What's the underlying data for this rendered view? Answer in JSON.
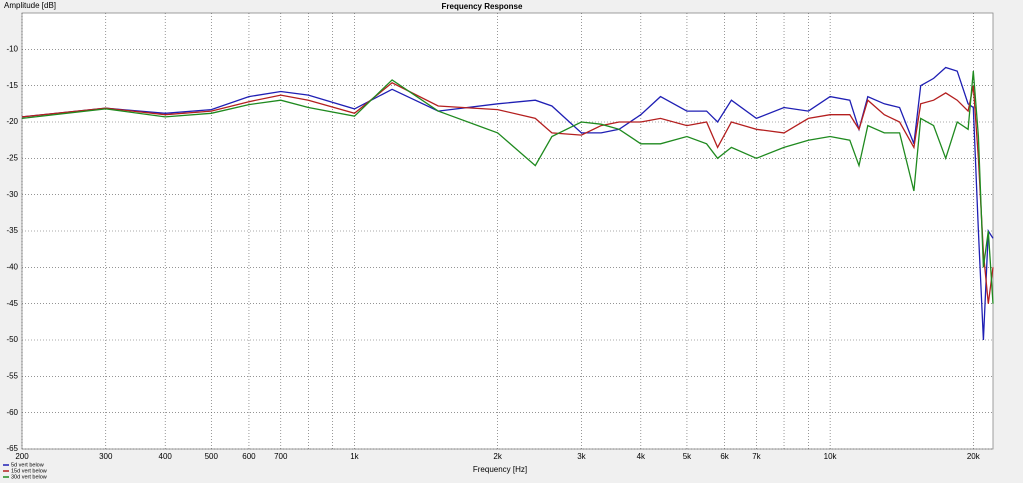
{
  "chart_data": {
    "type": "line",
    "title": "Frequency Response",
    "ylabel": "Amplitude [dB]",
    "xlabel": "Frequency [Hz]",
    "log_x": true,
    "grid": true,
    "legend": "bottom-left",
    "xlim": [
      200,
      22000
    ],
    "ylim": [
      -65,
      -5
    ],
    "xticks": [
      200,
      300,
      400,
      500,
      600,
      700,
      {
        "value": 1000,
        "label": "1k"
      },
      {
        "value": 2000,
        "label": "2k"
      },
      {
        "value": 3000,
        "label": "3k"
      },
      {
        "value": 4000,
        "label": "4k"
      },
      {
        "value": 5000,
        "label": "5k"
      },
      {
        "value": 6000,
        "label": "6k"
      },
      {
        "value": 7000,
        "label": "7k"
      },
      {
        "value": 10000,
        "label": "10k"
      },
      {
        "value": 20000,
        "label": "20k"
      }
    ],
    "xminor": [
      800,
      900,
      8000,
      9000
    ],
    "yticks": [
      -10,
      -15,
      -20,
      -25,
      -30,
      -35,
      -40,
      -45,
      -50,
      -55,
      -60,
      -65
    ],
    "x": [
      200,
      300,
      400,
      500,
      600,
      700,
      800,
      1000,
      1200,
      1500,
      2000,
      2400,
      2600,
      3000,
      3300,
      3600,
      4000,
      4400,
      5000,
      5500,
      5800,
      6200,
      7000,
      8000,
      9000,
      10000,
      11000,
      11500,
      12000,
      13000,
      14000,
      15000,
      15500,
      16500,
      17500,
      18500,
      19500,
      20000,
      20500,
      21000,
      21500,
      22000
    ],
    "series": [
      {
        "name": "5d vert below",
        "color": "#1f1fb4",
        "values": [
          -19.3,
          -18.1,
          -18.8,
          -18.3,
          -16.5,
          -15.8,
          -16.3,
          -18.2,
          -15.5,
          -18.5,
          -17.5,
          -17,
          -17.8,
          -21.5,
          -21.5,
          -21,
          -19,
          -16.5,
          -18.5,
          -18.5,
          -20,
          -17,
          -19.5,
          -18,
          -18.5,
          -16.5,
          -17,
          -21,
          -16.5,
          -17.5,
          -18,
          -23,
          -15,
          -14,
          -12.5,
          -13,
          -17.5,
          -18,
          -35,
          -50,
          -35,
          -36
        ]
      },
      {
        "name": "15d vert below",
        "color": "#b41f1f",
        "values": [
          -19.3,
          -18.1,
          -19,
          -18.5,
          -17.2,
          -16.3,
          -17,
          -18.8,
          -14.6,
          -17.8,
          -18.3,
          -19.5,
          -21.5,
          -21.8,
          -20.5,
          -20,
          -20,
          -19.5,
          -20.5,
          -20,
          -23.5,
          -20,
          -21,
          -21.5,
          -19.5,
          -19,
          -19,
          -21,
          -17,
          -19,
          -20,
          -23.5,
          -17.5,
          -17,
          -16,
          -17,
          -18.5,
          -15,
          -25,
          -38,
          -45,
          -40
        ]
      },
      {
        "name": "30d vert below",
        "color": "#1f8a1f",
        "values": [
          -19.5,
          -18.2,
          -19.3,
          -18.8,
          -17.6,
          -17,
          -18,
          -19.2,
          -14.2,
          -18.5,
          -21.5,
          -26,
          -22,
          -20,
          -20.3,
          -21,
          -23,
          -23,
          -22,
          -23,
          -25,
          -23.5,
          -25,
          -23.5,
          -22.5,
          -22,
          -22.5,
          -26,
          -20.5,
          -21.5,
          -21.5,
          -29.5,
          -19.5,
          -20.5,
          -25,
          -20,
          -21,
          -13,
          -22,
          -40,
          -35,
          -45
        ]
      }
    ]
  }
}
